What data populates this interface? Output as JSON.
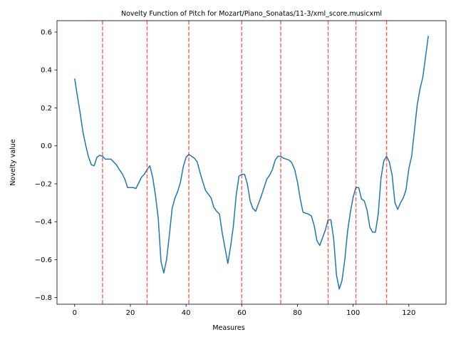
{
  "chart_data": {
    "type": "line",
    "title": "Novelty Function of Pitch for Mozart/Piano_Sonatas/11-3/xml_score.musicxml",
    "xlabel": "Measures",
    "ylabel": "Novelty value",
    "xlim": [
      -6.35,
      133.35
    ],
    "ylim": [
      -0.835,
      0.66
    ],
    "xticks": [
      0,
      20,
      40,
      60,
      80,
      100,
      120
    ],
    "yticks": [
      -0.8,
      -0.6,
      -0.4,
      -0.2,
      0.0,
      0.2,
      0.4,
      0.6
    ],
    "ytick_labels": [
      "−0.8",
      "−0.6",
      "−0.4",
      "−0.2",
      "0.0",
      "0.2",
      "0.4",
      "0.6"
    ],
    "grid": false,
    "series": [
      {
        "color": "#1f77b4",
        "x": [
          0,
          1,
          2,
          3,
          4,
          5,
          6,
          7,
          8,
          9,
          10,
          11,
          12,
          13,
          14,
          15,
          16,
          17,
          18,
          19,
          20,
          21,
          22,
          23,
          24,
          25,
          26,
          27,
          28,
          29,
          30,
          31,
          32,
          33,
          34,
          35,
          36,
          37,
          38,
          39,
          40,
          41,
          42,
          43,
          44,
          45,
          46,
          47,
          48,
          49,
          50,
          51,
          52,
          53,
          54,
          55,
          56,
          57,
          58,
          59,
          60,
          61,
          62,
          63,
          64,
          65,
          66,
          67,
          68,
          69,
          70,
          71,
          72,
          73,
          74,
          75,
          76,
          77,
          78,
          79,
          80,
          81,
          82,
          83,
          84,
          85,
          86,
          87,
          88,
          89,
          90,
          91,
          92,
          93,
          94,
          95,
          96,
          97,
          98,
          99,
          100,
          101,
          102,
          103,
          104,
          105,
          106,
          107,
          108,
          109,
          110,
          111,
          112,
          113,
          114,
          115,
          116,
          117,
          118,
          119,
          120,
          121,
          122,
          123,
          124,
          125,
          126,
          127
        ],
        "y": [
          0.355,
          0.26,
          0.17,
          0.07,
          0.0,
          -0.06,
          -0.1,
          -0.105,
          -0.06,
          -0.05,
          -0.055,
          -0.07,
          -0.07,
          -0.07,
          -0.085,
          -0.1,
          -0.125,
          -0.145,
          -0.175,
          -0.22,
          -0.22,
          -0.22,
          -0.225,
          -0.195,
          -0.165,
          -0.15,
          -0.125,
          -0.105,
          -0.165,
          -0.26,
          -0.38,
          -0.61,
          -0.67,
          -0.6,
          -0.47,
          -0.33,
          -0.275,
          -0.24,
          -0.19,
          -0.11,
          -0.06,
          -0.045,
          -0.055,
          -0.065,
          -0.085,
          -0.14,
          -0.19,
          -0.235,
          -0.255,
          -0.275,
          -0.325,
          -0.345,
          -0.36,
          -0.46,
          -0.54,
          -0.62,
          -0.53,
          -0.42,
          -0.26,
          -0.16,
          -0.15,
          -0.15,
          -0.2,
          -0.29,
          -0.33,
          -0.345,
          -0.305,
          -0.265,
          -0.22,
          -0.175,
          -0.155,
          -0.125,
          -0.075,
          -0.055,
          -0.055,
          -0.065,
          -0.07,
          -0.075,
          -0.09,
          -0.125,
          -0.19,
          -0.28,
          -0.35,
          -0.355,
          -0.36,
          -0.37,
          -0.42,
          -0.5,
          -0.525,
          -0.485,
          -0.445,
          -0.39,
          -0.39,
          -0.49,
          -0.68,
          -0.755,
          -0.71,
          -0.6,
          -0.45,
          -0.35,
          -0.27,
          -0.22,
          -0.22,
          -0.28,
          -0.29,
          -0.34,
          -0.43,
          -0.455,
          -0.455,
          -0.36,
          -0.17,
          -0.08,
          -0.055,
          -0.085,
          -0.155,
          -0.3,
          -0.335,
          -0.3,
          -0.275,
          -0.23,
          -0.12,
          -0.055,
          0.08,
          0.215,
          0.3,
          0.36,
          0.47,
          0.58
        ]
      }
    ],
    "vlines": {
      "x": [
        10,
        26,
        41,
        60,
        74,
        91,
        101,
        112
      ],
      "color": "#ff0000",
      "style": "dashed"
    }
  }
}
